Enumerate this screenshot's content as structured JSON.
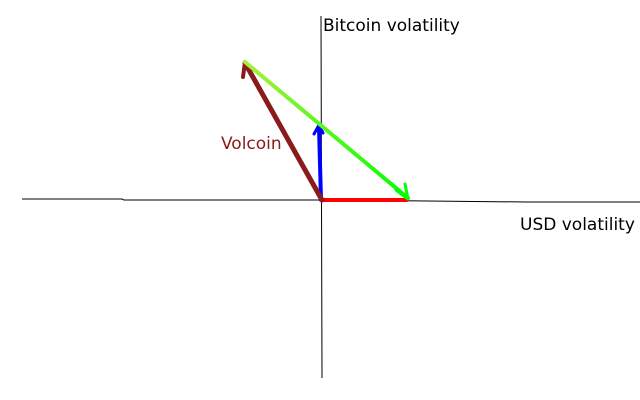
{
  "axes": {
    "y_label": "Bitcoin volatility",
    "x_label": "USD volatility"
  },
  "vectors": [
    {
      "id": "usd",
      "color": "#ff0000"
    },
    {
      "id": "bitcoin",
      "color": "#0000ff"
    },
    {
      "id": "volcoin",
      "color": "#8b1a1a",
      "label": "Volcoin"
    },
    {
      "id": "difference",
      "color_start": "#aaf03a",
      "color_end": "#00ff00"
    }
  ],
  "colors": {
    "axis": "#000000",
    "volcoin_label": "#8b1a1a"
  }
}
